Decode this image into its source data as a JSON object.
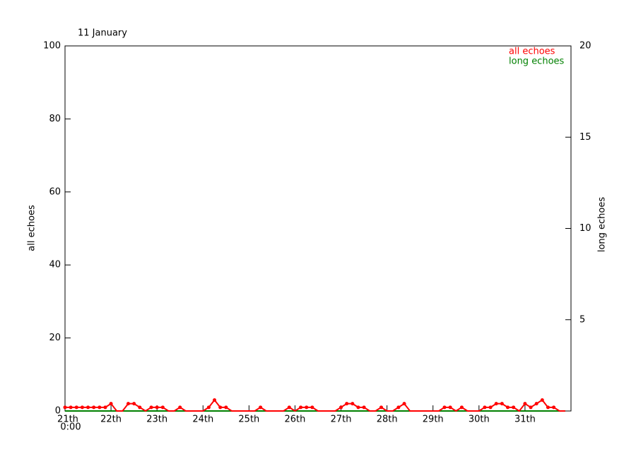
{
  "chart_data": {
    "type": "line",
    "title": "11 January",
    "x_start_label": "0:00",
    "y_label": "all echoes",
    "y2_label": "long echoes",
    "x": [
      0,
      0.125,
      0.25,
      0.375,
      0.5,
      0.625,
      0.75,
      0.875,
      1,
      1.125,
      1.25,
      1.375,
      1.5,
      1.625,
      1.75,
      1.875,
      2,
      2.125,
      2.25,
      2.375,
      2.5,
      2.625,
      2.75,
      2.875,
      3,
      3.125,
      3.25,
      3.375,
      3.5,
      3.625,
      3.75,
      3.875,
      4,
      4.125,
      4.25,
      4.375,
      4.5,
      4.625,
      4.75,
      4.875,
      5,
      5.125,
      5.25,
      5.375,
      5.5,
      5.625,
      5.75,
      5.875,
      6,
      6.125,
      6.25,
      6.375,
      6.5,
      6.625,
      6.75,
      6.875,
      7,
      7.125,
      7.25,
      7.375,
      7.5,
      7.625,
      7.75,
      7.875,
      8,
      8.125,
      8.25,
      8.375,
      8.5,
      8.625,
      8.75,
      8.875,
      9,
      9.125,
      9.25,
      9.375,
      9.5,
      9.625,
      9.75,
      9.875,
      10,
      10.125,
      10.25,
      10.375,
      10.5,
      10.625,
      10.75,
      10.875
    ],
    "series": [
      {
        "name": "long echoes",
        "color": "#008000",
        "axis": "y2",
        "values": [
          0,
          0,
          0,
          0,
          0,
          0,
          0,
          0,
          0,
          0,
          0,
          0,
          0,
          0,
          0,
          0,
          0,
          0,
          0,
          0,
          0,
          0,
          0,
          0,
          0,
          0,
          0,
          0,
          0,
          0,
          0,
          0,
          0,
          0,
          0,
          0,
          0,
          0,
          0,
          0,
          0,
          0,
          0,
          0,
          0,
          0,
          0,
          0,
          0,
          0,
          0,
          0,
          0,
          0,
          0,
          0,
          0,
          0,
          0,
          0,
          0,
          0,
          0,
          0,
          0,
          0,
          0,
          0,
          0,
          0,
          0,
          0,
          0,
          0,
          0,
          0,
          0,
          0,
          0,
          0,
          0,
          0,
          0,
          0,
          0,
          0,
          0,
          0
        ]
      },
      {
        "name": "all echoes",
        "color": "#ff0000",
        "values": [
          1,
          1,
          1,
          1,
          1,
          1,
          1,
          1,
          2,
          0,
          0,
          2,
          2,
          1,
          0,
          1,
          1,
          1,
          0,
          0,
          1,
          0,
          0,
          0,
          0,
          1,
          3,
          1,
          1,
          0,
          0,
          0,
          0,
          0,
          1,
          0,
          0,
          0,
          0,
          1,
          0,
          1,
          1,
          1,
          0,
          0,
          0,
          0,
          1,
          2,
          2,
          1,
          1,
          0,
          0,
          1,
          0,
          0,
          1,
          2,
          0,
          0,
          0,
          0,
          0,
          0,
          1,
          1,
          0,
          1,
          0,
          0,
          0,
          1,
          1,
          2,
          2,
          1,
          1,
          0,
          2,
          1,
          2,
          3,
          1,
          1,
          0,
          0
        ]
      }
    ],
    "xlim": [
      0,
      11
    ],
    "xticks": [
      {
        "value": 0,
        "label": "21th"
      },
      {
        "value": 1,
        "label": "22th"
      },
      {
        "value": 2,
        "label": "23th"
      },
      {
        "value": 3,
        "label": "24th"
      },
      {
        "value": 4,
        "label": "25th"
      },
      {
        "value": 5,
        "label": "26th"
      },
      {
        "value": 6,
        "label": "27th"
      },
      {
        "value": 7,
        "label": "28th"
      },
      {
        "value": 8,
        "label": "29th"
      },
      {
        "value": 9,
        "label": "30th"
      },
      {
        "value": 10,
        "label": "31th"
      }
    ],
    "ylim": [
      0,
      100
    ],
    "yticks": [
      0,
      20,
      40,
      60,
      80,
      100
    ],
    "y2lim": [
      0,
      20
    ],
    "y2ticks": [
      5,
      10,
      15,
      20
    ],
    "legend": "upper right"
  }
}
